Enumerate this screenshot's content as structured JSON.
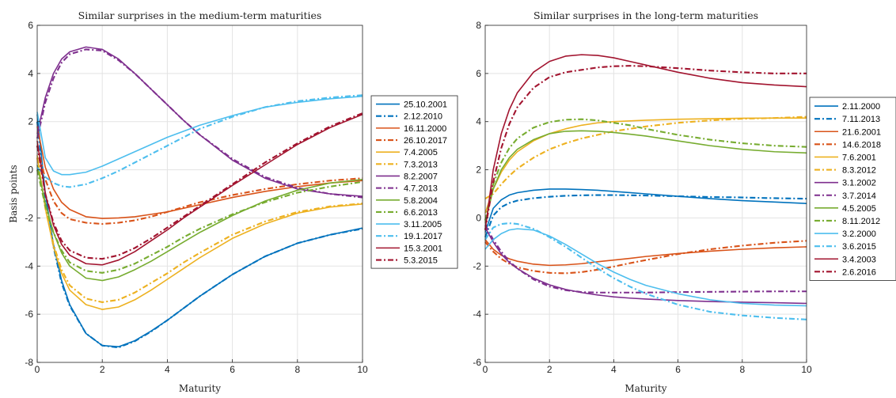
{
  "chart_data": [
    {
      "type": "line",
      "title": "Similar surprises in the medium-term maturities",
      "xlabel": "Maturity",
      "ylabel": "Basis points",
      "xlim": [
        0,
        10
      ],
      "ylim": [
        -8,
        6
      ],
      "xticks": [
        0,
        2,
        4,
        6,
        8,
        10
      ],
      "yticks": [
        -8,
        -6,
        -4,
        -2,
        0,
        2,
        4,
        6
      ],
      "grid": true,
      "legend_position": "outside-right",
      "x": [
        0,
        0.25,
        0.5,
        0.75,
        1,
        1.5,
        2,
        2.5,
        3,
        3.5,
        4,
        4.5,
        5,
        6,
        7,
        8,
        9,
        10
      ],
      "series": [
        {
          "name": "25.10.2001",
          "color": "#0072BD",
          "dash": "solid",
          "values": [
            2.3,
            -1.0,
            -3.1,
            -4.6,
            -5.6,
            -6.8,
            -7.3,
            -7.35,
            -7.1,
            -6.7,
            -6.25,
            -5.75,
            -5.25,
            -4.35,
            -3.6,
            -3.05,
            -2.7,
            -2.42
          ]
        },
        {
          "name": "2.12.2010",
          "color": "#0072BD",
          "dash": "dashdot",
          "values": [
            2.0,
            -1.2,
            -3.2,
            -4.7,
            -5.65,
            -6.8,
            -7.3,
            -7.38,
            -7.12,
            -6.72,
            -6.25,
            -5.75,
            -5.25,
            -4.35,
            -3.6,
            -3.05,
            -2.7,
            -2.45
          ]
        },
        {
          "name": "16.11.2000",
          "color": "#D95319",
          "dash": "solid",
          "values": [
            1.8,
            0.1,
            -0.8,
            -1.35,
            -1.65,
            -1.95,
            -2.02,
            -2.0,
            -1.95,
            -1.85,
            -1.75,
            -1.6,
            -1.45,
            -1.15,
            -0.9,
            -0.7,
            -0.55,
            -0.45
          ]
        },
        {
          "name": "26.10.2017",
          "color": "#D95319",
          "dash": "dashdot",
          "values": [
            1.0,
            -0.4,
            -1.3,
            -1.8,
            -2.05,
            -2.2,
            -2.25,
            -2.2,
            -2.1,
            -1.95,
            -1.75,
            -1.55,
            -1.35,
            -1.05,
            -0.8,
            -0.6,
            -0.45,
            -0.35
          ]
        },
        {
          "name": "7.4.2005",
          "color": "#EDB120",
          "dash": "solid",
          "values": [
            0.6,
            -1.6,
            -3.2,
            -4.3,
            -5.0,
            -5.6,
            -5.8,
            -5.7,
            -5.4,
            -5.0,
            -4.55,
            -4.1,
            -3.65,
            -2.85,
            -2.25,
            -1.8,
            -1.55,
            -1.42
          ]
        },
        {
          "name": "7.3.2013",
          "color": "#EDB120",
          "dash": "dashdot",
          "values": [
            0.5,
            -1.6,
            -3.1,
            -4.15,
            -4.8,
            -5.35,
            -5.5,
            -5.4,
            -5.1,
            -4.7,
            -4.3,
            -3.85,
            -3.45,
            -2.7,
            -2.15,
            -1.75,
            -1.52,
            -1.4
          ]
        },
        {
          "name": "8.2.2007",
          "color": "#7E2F8E",
          "dash": "solid",
          "values": [
            1.5,
            3.0,
            4.0,
            4.6,
            4.9,
            5.1,
            5.0,
            4.6,
            4.0,
            3.35,
            2.7,
            2.05,
            1.45,
            0.4,
            -0.35,
            -0.8,
            -1.0,
            -1.1
          ]
        },
        {
          "name": "4.7.2013",
          "color": "#7E2F8E",
          "dash": "dashdot",
          "values": [
            1.3,
            2.8,
            3.8,
            4.45,
            4.8,
            5.0,
            4.95,
            4.55,
            4.0,
            3.35,
            2.7,
            2.05,
            1.45,
            0.45,
            -0.3,
            -0.75,
            -1.0,
            -1.15
          ]
        },
        {
          "name": "5.8.2004",
          "color": "#77AC30",
          "dash": "solid",
          "values": [
            0.2,
            -1.4,
            -2.6,
            -3.45,
            -4.0,
            -4.5,
            -4.6,
            -4.45,
            -4.15,
            -3.8,
            -3.4,
            -3.0,
            -2.6,
            -1.9,
            -1.3,
            -0.85,
            -0.55,
            -0.4
          ]
        },
        {
          "name": "6.6.2013",
          "color": "#77AC30",
          "dash": "dashdot",
          "values": [
            0.0,
            -1.5,
            -2.6,
            -3.35,
            -3.85,
            -4.2,
            -4.28,
            -4.15,
            -3.9,
            -3.55,
            -3.2,
            -2.8,
            -2.45,
            -1.85,
            -1.35,
            -0.95,
            -0.7,
            -0.5
          ]
        },
        {
          "name": "3.11.2005",
          "color": "#4DBEEE",
          "dash": "solid",
          "values": [
            2.4,
            0.5,
            -0.05,
            -0.2,
            -0.2,
            -0.1,
            0.15,
            0.45,
            0.75,
            1.05,
            1.35,
            1.6,
            1.85,
            2.25,
            2.6,
            2.8,
            2.95,
            3.05
          ]
        },
        {
          "name": "19.1.2017",
          "color": "#4DBEEE",
          "dash": "dashdot",
          "values": [
            0.1,
            -0.3,
            -0.55,
            -0.68,
            -0.72,
            -0.6,
            -0.35,
            -0.05,
            0.3,
            0.65,
            1.0,
            1.35,
            1.7,
            2.2,
            2.6,
            2.85,
            3.0,
            3.1
          ]
        },
        {
          "name": "15.3.2001",
          "color": "#A2142F",
          "dash": "solid",
          "values": [
            1.2,
            -1.0,
            -2.3,
            -3.1,
            -3.55,
            -3.9,
            -3.95,
            -3.75,
            -3.4,
            -2.95,
            -2.5,
            -2.0,
            -1.55,
            -0.65,
            0.2,
            1.05,
            1.75,
            2.3
          ]
        },
        {
          "name": "5.3.2015",
          "color": "#A2142F",
          "dash": "dashdot",
          "values": [
            1.0,
            -1.0,
            -2.2,
            -2.95,
            -3.35,
            -3.65,
            -3.7,
            -3.55,
            -3.25,
            -2.85,
            -2.4,
            -1.95,
            -1.5,
            -0.6,
            0.3,
            1.1,
            1.8,
            2.35
          ]
        }
      ]
    },
    {
      "type": "line",
      "title": "Similar surprises in the long-term maturities",
      "xlabel": "Maturity",
      "ylabel": "",
      "xlim": [
        0,
        10
      ],
      "ylim": [
        -6,
        8
      ],
      "xticks": [
        0,
        2,
        4,
        6,
        8,
        10
      ],
      "yticks": [
        -6,
        -4,
        -2,
        0,
        2,
        4,
        6,
        8
      ],
      "grid": true,
      "legend_position": "outside-right",
      "x": [
        0,
        0.25,
        0.5,
        0.75,
        1,
        1.5,
        2,
        2.5,
        3,
        3.5,
        4,
        4.5,
        5,
        6,
        7,
        8,
        9,
        10
      ],
      "series": [
        {
          "name": "2.11.2000",
          "color": "#0072BD",
          "dash": "solid",
          "values": [
            -0.6,
            0.4,
            0.75,
            0.95,
            1.05,
            1.15,
            1.2,
            1.2,
            1.18,
            1.15,
            1.1,
            1.05,
            1.0,
            0.9,
            0.8,
            0.72,
            0.66,
            0.6
          ]
        },
        {
          "name": "7.11.2013",
          "color": "#0072BD",
          "dash": "dashdot",
          "values": [
            -0.8,
            0.1,
            0.45,
            0.62,
            0.72,
            0.82,
            0.88,
            0.92,
            0.94,
            0.95,
            0.95,
            0.94,
            0.93,
            0.9,
            0.87,
            0.85,
            0.82,
            0.8
          ]
        },
        {
          "name": "21.6.2001",
          "color": "#D95319",
          "dash": "solid",
          "values": [
            -0.9,
            -1.3,
            -1.55,
            -1.7,
            -1.8,
            -1.92,
            -1.97,
            -1.95,
            -1.9,
            -1.82,
            -1.75,
            -1.68,
            -1.6,
            -1.48,
            -1.38,
            -1.3,
            -1.24,
            -1.2
          ]
        },
        {
          "name": "14.6.2018",
          "color": "#D95319",
          "dash": "dashdot",
          "values": [
            -1.0,
            -1.4,
            -1.7,
            -1.9,
            -2.05,
            -2.2,
            -2.28,
            -2.3,
            -2.25,
            -2.15,
            -2.02,
            -1.88,
            -1.75,
            -1.5,
            -1.3,
            -1.15,
            -1.03,
            -0.95
          ]
        },
        {
          "name": "7.6.2001",
          "color": "#EDB120",
          "dash": "solid",
          "values": [
            0.2,
            1.2,
            1.9,
            2.4,
            2.75,
            3.2,
            3.5,
            3.7,
            3.85,
            3.95,
            4.0,
            4.03,
            4.06,
            4.1,
            4.12,
            4.14,
            4.15,
            4.15
          ]
        },
        {
          "name": "8.3.2012",
          "color": "#EDB120",
          "dash": "dashdot",
          "values": [
            0.8,
            1.0,
            1.4,
            1.75,
            2.05,
            2.5,
            2.85,
            3.1,
            3.3,
            3.45,
            3.6,
            3.7,
            3.8,
            3.95,
            4.05,
            4.12,
            4.15,
            4.2
          ]
        },
        {
          "name": "3.1.2002",
          "color": "#7E2F8E",
          "dash": "solid",
          "values": [
            -0.4,
            -1.0,
            -1.5,
            -1.85,
            -2.1,
            -2.5,
            -2.78,
            -2.97,
            -3.1,
            -3.2,
            -3.28,
            -3.33,
            -3.37,
            -3.43,
            -3.47,
            -3.5,
            -3.52,
            -3.55
          ]
        },
        {
          "name": "3.7.2014",
          "color": "#7E2F8E",
          "dash": "dashdot",
          "values": [
            -0.3,
            -0.9,
            -1.4,
            -1.8,
            -2.1,
            -2.55,
            -2.85,
            -3.0,
            -3.08,
            -3.1,
            -3.1,
            -3.1,
            -3.1,
            -3.08,
            -3.07,
            -3.06,
            -3.05,
            -3.05
          ]
        },
        {
          "name": "4.5.2005",
          "color": "#77AC30",
          "dash": "solid",
          "values": [
            -0.2,
            1.2,
            2.0,
            2.5,
            2.85,
            3.25,
            3.5,
            3.6,
            3.62,
            3.6,
            3.55,
            3.48,
            3.4,
            3.2,
            3.0,
            2.85,
            2.75,
            2.7
          ]
        },
        {
          "name": "8.11.2012",
          "color": "#77AC30",
          "dash": "dashdot",
          "values": [
            -0.1,
            1.4,
            2.3,
            2.9,
            3.3,
            3.75,
            3.98,
            4.08,
            4.1,
            4.05,
            3.95,
            3.85,
            3.7,
            3.45,
            3.25,
            3.1,
            3.0,
            2.95
          ]
        },
        {
          "name": "3.2.2000",
          "color": "#4DBEEE",
          "dash": "solid",
          "values": [
            -1.3,
            -0.9,
            -0.65,
            -0.5,
            -0.45,
            -0.5,
            -0.75,
            -1.1,
            -1.5,
            -1.9,
            -2.25,
            -2.55,
            -2.8,
            -3.15,
            -3.4,
            -3.55,
            -3.62,
            -3.65
          ]
        },
        {
          "name": "3.6.2015",
          "color": "#4DBEEE",
          "dash": "dashdot",
          "values": [
            -0.9,
            -0.4,
            -0.25,
            -0.22,
            -0.25,
            -0.45,
            -0.8,
            -1.2,
            -1.65,
            -2.1,
            -2.5,
            -2.85,
            -3.15,
            -3.6,
            -3.9,
            -4.05,
            -4.15,
            -4.22
          ]
        },
        {
          "name": "3.4.2003",
          "color": "#A2142F",
          "dash": "solid",
          "values": [
            -0.5,
            2.0,
            3.5,
            4.5,
            5.2,
            6.05,
            6.5,
            6.72,
            6.78,
            6.75,
            6.65,
            6.5,
            6.35,
            6.05,
            5.8,
            5.62,
            5.52,
            5.45
          ]
        },
        {
          "name": "2.6.2016",
          "color": "#A2142F",
          "dash": "dashdot",
          "values": [
            -0.5,
            1.5,
            2.9,
            3.9,
            4.6,
            5.4,
            5.85,
            6.05,
            6.15,
            6.25,
            6.3,
            6.32,
            6.3,
            6.22,
            6.12,
            6.05,
            6.0,
            6.0
          ]
        }
      ]
    }
  ]
}
